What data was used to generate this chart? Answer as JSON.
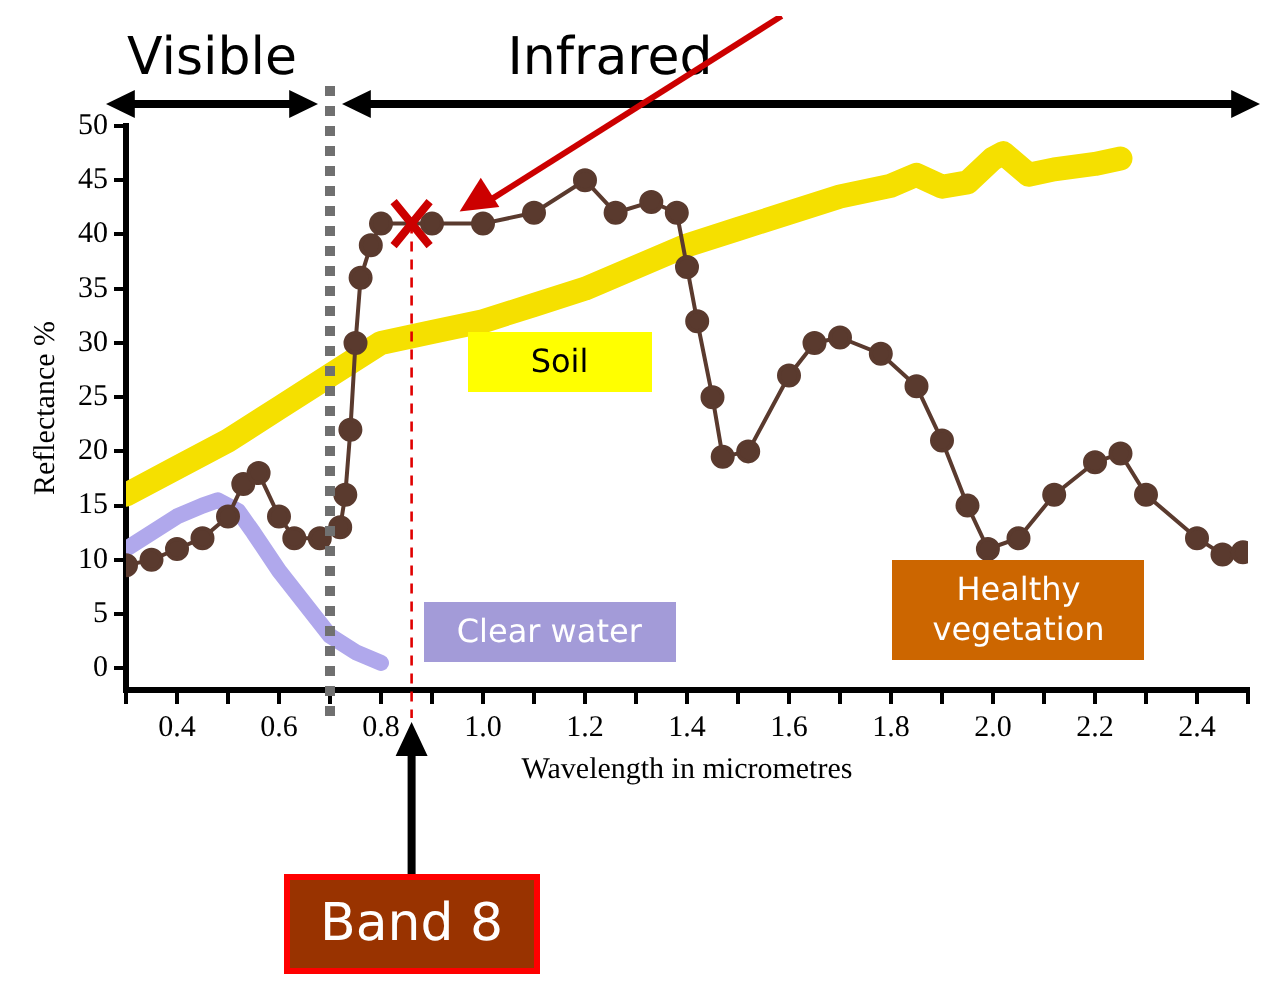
{
  "chart_data": {
    "type": "line",
    "xlabel": "Wavelength in micrometres",
    "ylabel": "Reflectance %",
    "xlim": [
      0.3,
      2.5
    ],
    "ylim": [
      -2,
      50
    ],
    "xticks": [
      {
        "value": 0.3,
        "label": null
      },
      0.4,
      {
        "value": 0.5,
        "label": null
      },
      0.6,
      {
        "value": 0.7,
        "label": null
      },
      0.8,
      {
        "value": 0.9,
        "label": null
      },
      {
        "value": 1,
        "label": "1.0"
      },
      {
        "value": 1.1,
        "label": null
      },
      1.2,
      {
        "value": 1.3,
        "label": null
      },
      1.4,
      {
        "value": 1.5,
        "label": null
      },
      1.6,
      {
        "value": 1.7,
        "label": null
      },
      1.8,
      {
        "value": 1.9,
        "label": null
      },
      {
        "value": 2,
        "label": "2.0"
      },
      {
        "value": 2.1,
        "label": null
      },
      2.2,
      {
        "value": 2.3,
        "label": null
      },
      2.4,
      {
        "value": 2.5,
        "label": null
      }
    ],
    "yticks": [
      0,
      5,
      10,
      15,
      20,
      25,
      30,
      35,
      40,
      45,
      50
    ],
    "grid": false,
    "legend": false,
    "series": [
      {
        "name": "Soil",
        "color": "#f5e000",
        "marker": "none",
        "x": [
          0.3,
          0.4,
          0.5,
          0.6,
          0.7,
          0.8,
          0.9,
          1.0,
          1.1,
          1.2,
          1.3,
          1.4,
          1.5,
          1.6,
          1.7,
          1.8,
          1.85,
          1.9,
          1.95,
          2.0,
          2.02,
          2.07,
          2.12,
          2.2,
          2.25
        ],
        "values": [
          16,
          18.5,
          21,
          24,
          27,
          30,
          31,
          32,
          33.5,
          35,
          37,
          39,
          40.5,
          42,
          43.5,
          44.5,
          45.5,
          44.4,
          44.8,
          47,
          47.5,
          45.5,
          46,
          46.5,
          47
        ]
      },
      {
        "name": "Clear water",
        "color": "#b0a8ec",
        "marker": "none",
        "x": [
          0.3,
          0.35,
          0.4,
          0.45,
          0.48,
          0.52,
          0.55,
          0.6,
          0.65,
          0.7,
          0.75,
          0.8
        ],
        "values": [
          11,
          12.5,
          14,
          15,
          15.5,
          14.5,
          12.5,
          9,
          6,
          3,
          1.5,
          0.5
        ]
      },
      {
        "name": "Healthy vegetation",
        "color": "#5a3a2e",
        "marker": "circle",
        "x": [
          0.3,
          0.35,
          0.4,
          0.45,
          0.5,
          0.53,
          0.56,
          0.6,
          0.63,
          0.68,
          0.72,
          0.73,
          0.74,
          0.75,
          0.76,
          0.78,
          0.8,
          0.85,
          0.9,
          1.0,
          1.1,
          1.2,
          1.26,
          1.33,
          1.38,
          1.4,
          1.42,
          1.45,
          1.47,
          1.52,
          1.6,
          1.65,
          1.7,
          1.78,
          1.85,
          1.9,
          1.95,
          1.99,
          2.05,
          2.12,
          2.2,
          2.25,
          2.3,
          2.4,
          2.45,
          2.49
        ],
        "values": [
          9.5,
          10,
          11,
          12,
          14,
          17,
          18,
          14,
          12,
          12,
          13,
          16,
          22,
          30,
          36,
          39,
          41,
          null,
          41,
          41,
          42,
          45,
          42,
          43,
          42,
          37,
          32,
          25,
          19.5,
          20,
          27,
          30,
          30.5,
          29,
          26,
          21,
          15,
          11,
          12,
          16,
          19,
          19.8,
          16,
          12,
          10.5,
          10.7
        ]
      }
    ],
    "ref_lines": [
      {
        "axis": "x",
        "value": 0.7,
        "color": "#707070",
        "line_style": "dotted"
      },
      {
        "axis": "x",
        "value": 0.86,
        "color": "#e00000",
        "line_style": "dashed"
      }
    ],
    "annotations": [
      "Visible",
      "Infrared",
      "Band 8"
    ]
  }
}
